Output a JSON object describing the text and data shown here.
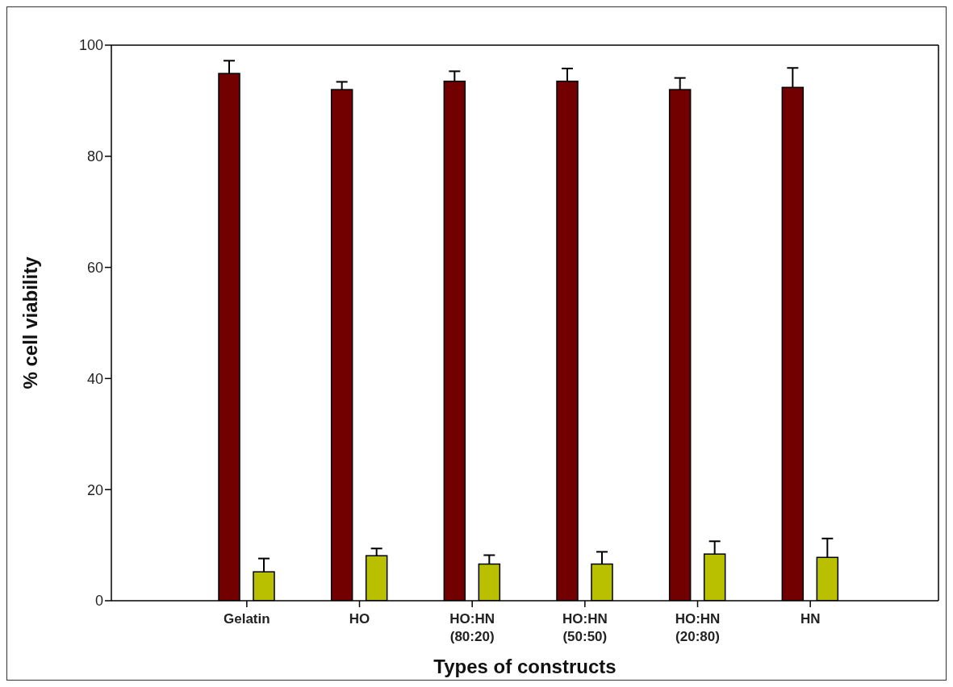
{
  "chart_data": {
    "type": "bar",
    "xlabel": "Types of constructs",
    "ylabel": "% cell viability",
    "categories": [
      "Gelatin",
      "HO",
      "HO:HN (80:20)",
      "HO:HN (50:50)",
      "HO:HN (20:80)",
      "HN"
    ],
    "series": [
      {
        "color": "#720000",
        "values": [
          94.9,
          92.0,
          93.5,
          93.5,
          92.0,
          92.4
        ],
        "errors": [
          [
            94.9,
            97.2
          ],
          [
            92.0,
            93.4
          ],
          [
            93.5,
            95.3
          ],
          [
            93.5,
            95.8
          ],
          [
            92.0,
            94.1
          ],
          [
            92.4,
            95.9
          ]
        ]
      },
      {
        "color": "#b8c000",
        "values": [
          5.2,
          8.1,
          6.6,
          6.6,
          8.4,
          7.8
        ],
        "errors": [
          [
            5.2,
            7.6
          ],
          [
            8.1,
            9.4
          ],
          [
            6.6,
            8.2
          ],
          [
            6.6,
            8.8
          ],
          [
            8.4,
            10.7
          ],
          [
            7.8,
            11.2
          ]
        ]
      }
    ],
    "ylim": [
      0,
      100
    ],
    "yticks": [
      0,
      20,
      40,
      60,
      80,
      100
    ],
    "grid": false,
    "legend": false
  }
}
